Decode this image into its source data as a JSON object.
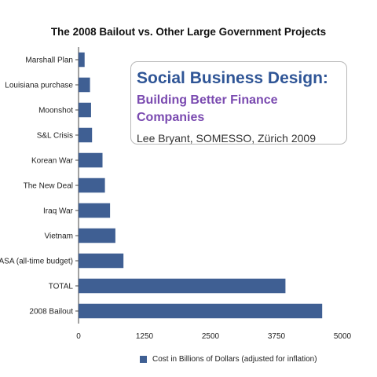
{
  "colors": {
    "bar": "#3f5f93",
    "axis": "#444444",
    "grid": "#d9d9d9",
    "overlay_title": "#2f5596",
    "overlay_subtitle": "#7a4ab0"
  },
  "overlay": {
    "title": "Social Business Design:",
    "subtitle": "Building Better Finance Companies",
    "author": "Lee Bryant, SOMESSO, Zürich 2009"
  },
  "chart_data": {
    "type": "bar",
    "orientation": "horizontal",
    "title": "The 2008 Bailout vs. Other Large Government Projects",
    "xlabel": "",
    "ylabel": "",
    "xlim": [
      0,
      5000
    ],
    "x_ticks": [
      "0",
      "1250",
      "2500",
      "3750",
      "5000"
    ],
    "grid": false,
    "legend_position": "bottom",
    "categories": [
      "Marshall Plan",
      "Louisiana purchase",
      "Moonshot",
      "S&L Crisis",
      "Korean War",
      "The New Deal",
      "Iraq War",
      "Vietnam",
      "NASA (all-time budget)",
      "TOTAL",
      "2008 Bailout"
    ],
    "series": [
      {
        "name": "Cost in Billions of Dollars (adjusted for inflation)",
        "values": [
          115,
          217,
          237,
          256,
          454,
          500,
          597,
          698,
          851,
          3920,
          4616
        ]
      }
    ]
  }
}
